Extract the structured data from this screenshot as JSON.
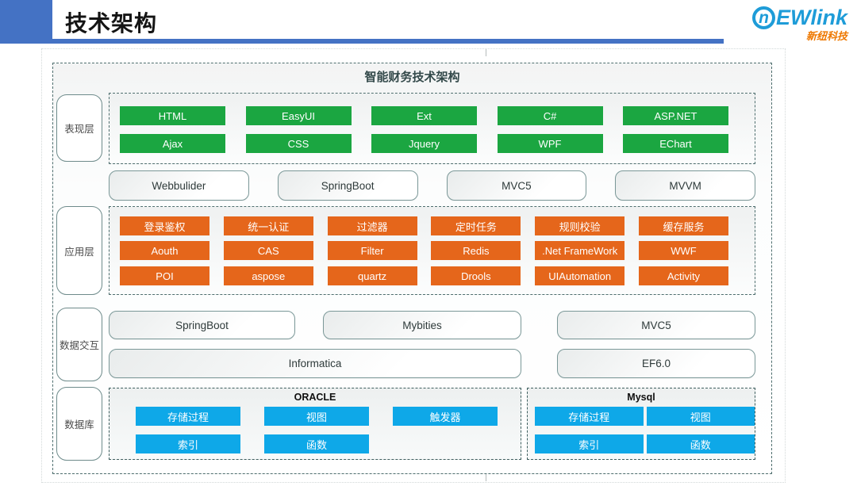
{
  "header": {
    "title": "技术架构"
  },
  "logo": {
    "brand_n": "n",
    "brand": "EWlink",
    "subtitle": "新纽科技"
  },
  "diagram": {
    "title": "智能财务技术架构",
    "presentation": {
      "label": "表现层",
      "row1": [
        "HTML",
        "EasyUI",
        "Ext",
        "C#",
        "ASP.NET"
      ],
      "row2": [
        "Ajax",
        "CSS",
        "Jquery",
        "WPF",
        "EChart"
      ]
    },
    "frameworks": [
      "Webbulider",
      "SpringBoot",
      "MVC5",
      "MVVM"
    ],
    "application": {
      "label": "应用层",
      "row1": [
        "登录鉴权",
        "统一认证",
        "过滤器",
        "定时任务",
        "规则校验",
        "缓存服务"
      ],
      "row2": [
        "Aouth",
        "CAS",
        "Filter",
        "Redis",
        ".Net FrameWork",
        "WWF"
      ],
      "row3": [
        "POI",
        "aspose",
        "quartz",
        "Drools",
        "UIAutomation",
        "Activity"
      ]
    },
    "data_interaction": {
      "label": "数据交互",
      "springboot": "SpringBoot",
      "mybities": "Mybities",
      "mvc5": "MVC5",
      "informatica": "Informatica",
      "ef6": "EF6.0"
    },
    "database": {
      "label": "数据库",
      "oracle": {
        "title": "ORACLE",
        "row1": [
          "存储过程",
          "视图",
          "触发器"
        ],
        "row2": [
          "索引",
          "函数"
        ]
      },
      "mysql": {
        "title": "Mysql",
        "row1": [
          "存储过程",
          "视图"
        ],
        "row2": [
          "索引",
          "函数"
        ]
      }
    }
  },
  "colors": {
    "header_blue": "#4472C4",
    "green": "#1BA641",
    "orange": "#E5661B",
    "blue": "#0EA8E8",
    "logo_blue": "#1E9CD8",
    "logo_orange": "#EE7800"
  }
}
